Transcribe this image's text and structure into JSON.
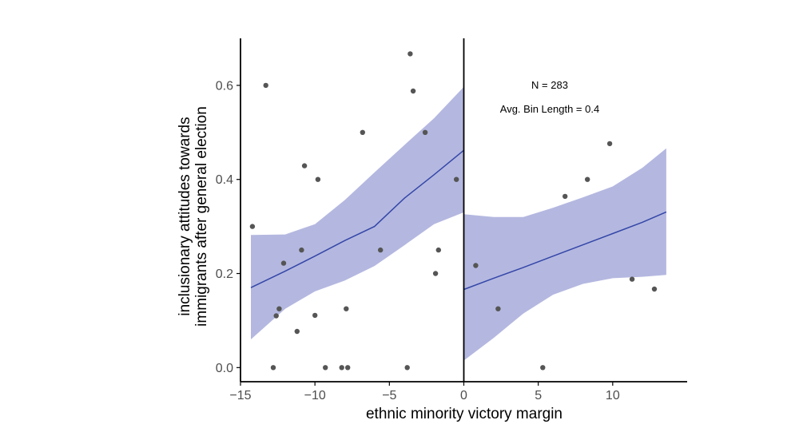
{
  "chart_data": {
    "type": "scatter",
    "title": "",
    "xlabel": "ethnic minority victory margin",
    "ylabel_lines": [
      "inclusionary attitudes towards",
      "immigrants after general election"
    ],
    "xlim": [
      -15,
      15
    ],
    "ylim": [
      -0.03,
      0.7
    ],
    "xticks": [
      -15,
      -10,
      -5,
      0,
      5,
      10
    ],
    "xtick_labels": [
      "−15",
      "−10",
      "−5",
      "0",
      "5",
      "10"
    ],
    "yticks": [
      0.0,
      0.2,
      0.4,
      0.6
    ],
    "ytick_labels": [
      "0.0",
      "0.2",
      "0.4",
      "0.6"
    ],
    "cutoff": 0,
    "annotations": [
      "N = 283",
      "Avg. Bin Length = 0.4"
    ],
    "points": [
      {
        "x": -14.2,
        "y": 0.3
      },
      {
        "x": -13.3,
        "y": 0.6
      },
      {
        "x": -12.8,
        "y": 0.0
      },
      {
        "x": -12.6,
        "y": 0.11
      },
      {
        "x": -12.4,
        "y": 0.125
      },
      {
        "x": -12.1,
        "y": 0.222
      },
      {
        "x": -11.2,
        "y": 0.077
      },
      {
        "x": -10.9,
        "y": 0.25
      },
      {
        "x": -10.7,
        "y": 0.429
      },
      {
        "x": -10.0,
        "y": 0.111
      },
      {
        "x": -9.8,
        "y": 0.4
      },
      {
        "x": -9.3,
        "y": 0.0
      },
      {
        "x": -8.2,
        "y": 0.0
      },
      {
        "x": -7.9,
        "y": 0.125
      },
      {
        "x": -7.8,
        "y": 0.0
      },
      {
        "x": -6.8,
        "y": 0.5
      },
      {
        "x": -5.6,
        "y": 0.25
      },
      {
        "x": -3.8,
        "y": 0.0
      },
      {
        "x": -3.6,
        "y": 0.667
      },
      {
        "x": -3.4,
        "y": 0.588
      },
      {
        "x": -2.6,
        "y": 0.5
      },
      {
        "x": -1.9,
        "y": 0.2
      },
      {
        "x": -1.7,
        "y": 0.25
      },
      {
        "x": -0.5,
        "y": 0.4
      },
      {
        "x": 0.8,
        "y": 0.217
      },
      {
        "x": 2.3,
        "y": 0.125
      },
      {
        "x": 5.3,
        "y": 0.0
      },
      {
        "x": 6.8,
        "y": 0.364
      },
      {
        "x": 8.3,
        "y": 0.4
      },
      {
        "x": 9.8,
        "y": 0.476
      },
      {
        "x": 11.3,
        "y": 0.188
      },
      {
        "x": 12.8,
        "y": 0.167
      }
    ],
    "series": [
      {
        "name": "left fit",
        "x": [
          -14.3,
          -12,
          -10,
          -8,
          -6,
          -4,
          -2,
          0
        ],
        "fit": [
          0.17,
          0.205,
          0.237,
          0.27,
          0.3,
          0.36,
          0.41,
          0.462
        ],
        "lower": [
          0.06,
          0.125,
          0.162,
          0.185,
          0.216,
          0.26,
          0.305,
          0.33
        ],
        "upper": [
          0.282,
          0.283,
          0.305,
          0.356,
          0.415,
          0.473,
          0.53,
          0.597
        ]
      },
      {
        "name": "right fit",
        "x": [
          0,
          2,
          4,
          6,
          8,
          10,
          12,
          13.6
        ],
        "fit": [
          0.166,
          0.19,
          0.213,
          0.237,
          0.261,
          0.285,
          0.309,
          0.331
        ],
        "lower": [
          0.015,
          0.063,
          0.115,
          0.155,
          0.178,
          0.19,
          0.193,
          0.197
        ],
        "upper": [
          0.326,
          0.32,
          0.32,
          0.34,
          0.362,
          0.385,
          0.425,
          0.466
        ]
      }
    ],
    "colors": {
      "ribbon": "#b4b8e0",
      "line": "#3446a8",
      "point": "#555555",
      "axis": "#000000"
    }
  }
}
